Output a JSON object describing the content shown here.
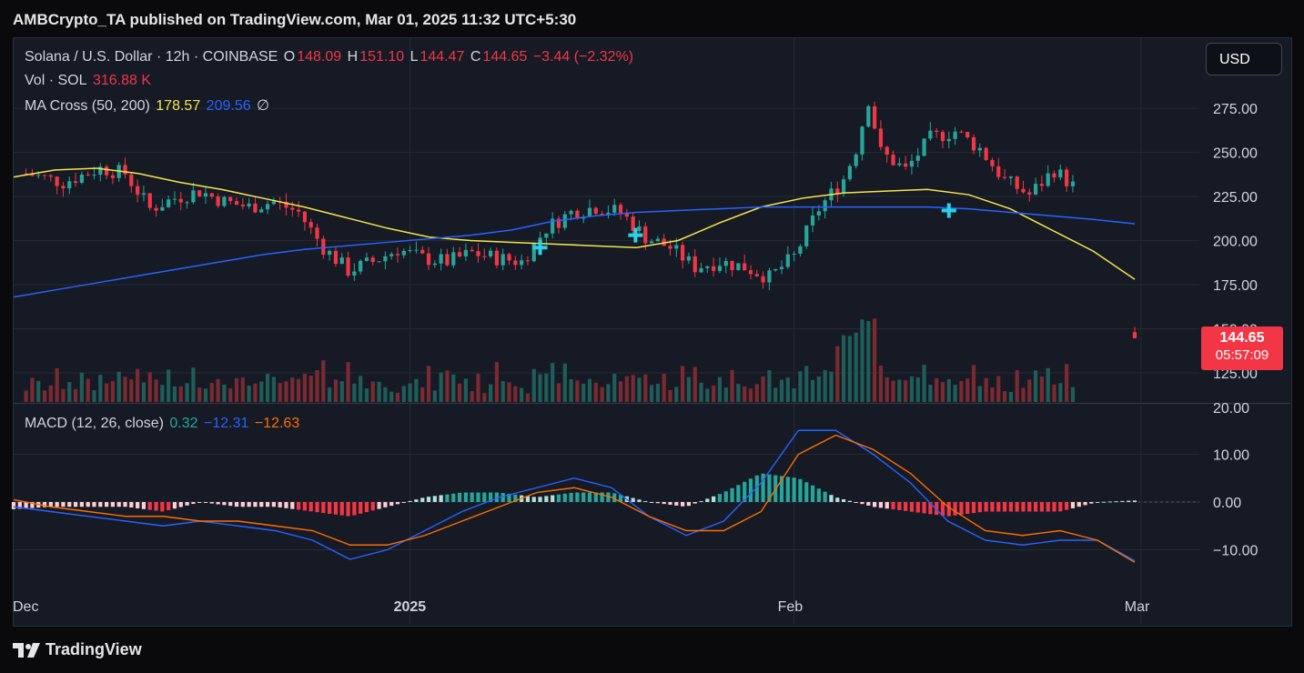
{
  "publish_line": "AMBCrypto_TA published on TradingView.com, Mar 01, 2025 11:32 UTC+5:30",
  "brand": "TradingView",
  "header": {
    "symbol": "Solana / U.S. Dollar · 12h · COINBASE",
    "o_label": "O",
    "o_value": "148.09",
    "h_label": "H",
    "h_value": "151.10",
    "l_label": "L",
    "l_value": "144.47",
    "c_label": "C",
    "c_value": "144.65",
    "change": "−3.44 (−2.32%)",
    "vol_label": "Vol · SOL",
    "vol_value": "316.88 K",
    "ma_label": "MA Cross (50, 200)",
    "ma_50": "178.57",
    "ma_200": "209.56",
    "ma_extra": "∅",
    "macd_label": "MACD (12, 26, close)",
    "macd_hist": "0.32",
    "macd_line": "−12.31",
    "macd_signal": "−12.63"
  },
  "currency_button": "USD",
  "last_price": {
    "value": "144.65",
    "countdown": "05:57:09"
  },
  "colors": {
    "up": "#26a69a",
    "down": "#f23645",
    "ma50": "#f5e54a",
    "ma200": "#2962ff",
    "macd": "#2962ff",
    "signal": "#ff6d00",
    "background": "#161a25"
  },
  "chart_data": [
    {
      "type": "candlestick",
      "title": "Solana / U.S. Dollar · 12h · COINBASE",
      "interval": "12h",
      "y_axis": {
        "range": [
          110,
          300
        ],
        "ticks": [
          "125.00",
          "150.00",
          "175.00",
          "200.00",
          "225.00",
          "250.00",
          "275.00"
        ]
      },
      "x_axis": {
        "range_days": [
          -2,
          74
        ],
        "ticks": [
          {
            "label": "Dec",
            "day": -2
          },
          {
            "label": "2025",
            "day": 30
          },
          {
            "label": "Feb",
            "day": 61
          },
          {
            "label": "Mar",
            "day": 89
          }
        ]
      },
      "close_path": [
        {
          "day": -1,
          "c": 238
        },
        {
          "day": 2,
          "c": 233
        },
        {
          "day": 5,
          "c": 241
        },
        {
          "day": 7,
          "c": 238
        },
        {
          "day": 9,
          "c": 218
        },
        {
          "day": 11,
          "c": 224
        },
        {
          "day": 13,
          "c": 228
        },
        {
          "day": 15,
          "c": 222
        },
        {
          "day": 17,
          "c": 219
        },
        {
          "day": 19,
          "c": 222
        },
        {
          "day": 21,
          "c": 216
        },
        {
          "day": 23,
          "c": 196
        },
        {
          "day": 25,
          "c": 183
        },
        {
          "day": 27,
          "c": 188
        },
        {
          "day": 29,
          "c": 195
        },
        {
          "day": 31,
          "c": 190
        },
        {
          "day": 33,
          "c": 188
        },
        {
          "day": 35,
          "c": 193
        },
        {
          "day": 37,
          "c": 190
        },
        {
          "day": 39,
          "c": 188
        },
        {
          "day": 41,
          "c": 207
        },
        {
          "day": 43,
          "c": 216
        },
        {
          "day": 45,
          "c": 219
        },
        {
          "day": 47,
          "c": 216
        },
        {
          "day": 49,
          "c": 202
        },
        {
          "day": 51,
          "c": 196
        },
        {
          "day": 53,
          "c": 185
        },
        {
          "day": 55,
          "c": 188
        },
        {
          "day": 57,
          "c": 185
        },
        {
          "day": 59,
          "c": 179
        },
        {
          "day": 61,
          "c": 191
        },
        {
          "day": 63,
          "c": 218
        },
        {
          "day": 65,
          "c": 235
        },
        {
          "day": 66,
          "c": 252
        },
        {
          "day": 67,
          "c": 280
        },
        {
          "day": 68,
          "c": 250
        },
        {
          "day": 70,
          "c": 240
        },
        {
          "day": 72,
          "c": 258
        },
        {
          "day": 74,
          "c": 262
        },
        {
          "day": 76,
          "c": 252
        },
        {
          "day": 78,
          "c": 234
        },
        {
          "day": 80,
          "c": 226
        },
        {
          "day": 82,
          "c": 240
        },
        {
          "day": 84,
          "c": 228
        }
      ]
    },
    {
      "type": "line",
      "title": "MA Cross (50, 200)",
      "series": [
        {
          "name": "50",
          "color": "#f5e54a",
          "values": [
            236,
            240,
            241,
            238,
            233,
            229,
            224,
            219,
            213,
            207,
            202,
            200,
            199,
            198,
            197,
            196,
            200,
            210,
            219,
            224,
            227,
            228,
            229,
            226,
            218,
            206,
            194,
            178
          ]
        },
        {
          "name": "200",
          "color": "#2962ff",
          "values": [
            168,
            172,
            176,
            180,
            184,
            188,
            192,
            195,
            197,
            199,
            201,
            203,
            206,
            211,
            214,
            216,
            217,
            218,
            219,
            219,
            219,
            219,
            219,
            218,
            216,
            214,
            212,
            209.5
          ]
        }
      ],
      "crosses": [
        {
          "price": 196
        },
        {
          "price": 203
        },
        {
          "price": 217
        }
      ]
    },
    {
      "type": "bar",
      "title": "Vol · SOL",
      "last_value": "316.88 K"
    },
    {
      "type": "line",
      "title": "MACD (12, 26, close)",
      "y_axis": {
        "range": [
          -16,
          20
        ],
        "ticks": [
          "−10.00",
          "0.00",
          "10.00",
          "20.00"
        ]
      },
      "series": [
        {
          "name": "MACD",
          "color": "#2962ff",
          "values": [
            -1,
            -2,
            -3,
            -4,
            -5,
            -4,
            -5,
            -6,
            -8,
            -12,
            -10,
            -6,
            -2,
            1,
            3,
            5,
            3,
            -3,
            -7,
            -4,
            4,
            15,
            15,
            10,
            4,
            -4,
            -8,
            -9,
            -8,
            -8,
            -12.31
          ]
        },
        {
          "name": "Signal",
          "color": "#ff6d00",
          "values": [
            0.5,
            -1,
            -2,
            -3,
            -3,
            -4,
            -4,
            -5,
            -6,
            -9,
            -9,
            -7,
            -4,
            -1,
            2,
            3,
            1,
            -3,
            -6,
            -6,
            -2,
            10,
            14,
            11,
            6,
            -1,
            -6,
            -7,
            -6,
            -8,
            -12.63
          ]
        }
      ],
      "last_hist": 0.32
    }
  ]
}
